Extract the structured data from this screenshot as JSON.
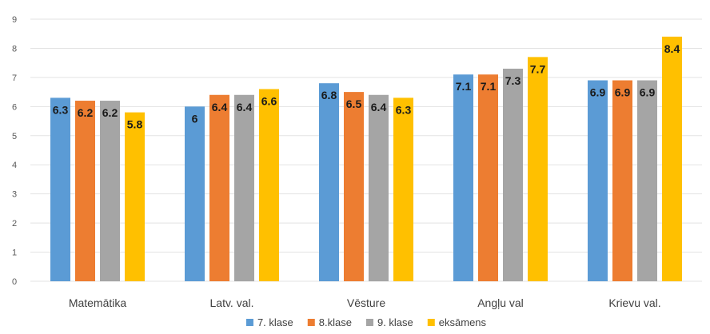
{
  "chart_data": {
    "type": "bar",
    "title": "",
    "xlabel": "",
    "ylabel": "",
    "ylim": [
      0,
      9
    ],
    "yticks": [
      0,
      1,
      2,
      3,
      4,
      5,
      6,
      7,
      8,
      9
    ],
    "grid": true,
    "legend_position": "bottom",
    "categories": [
      "Matemātika",
      "Latv. val.",
      "Vēsture",
      "Angļu val",
      "Krievu val."
    ],
    "series": [
      {
        "name": "7. klase",
        "color": "#5b9bd5",
        "values": [
          6.3,
          6,
          6.8,
          7.1,
          6.9
        ],
        "labels": [
          "6.3",
          "6",
          "6.8",
          "7.1",
          "6.9"
        ]
      },
      {
        "name": "8.klase",
        "color": "#ed7d31",
        "values": [
          6.2,
          6.4,
          6.5,
          7.1,
          6.9
        ],
        "labels": [
          "6.2",
          "6.4",
          "6.5",
          "7.1",
          "6.9"
        ]
      },
      {
        "name": "9. klase",
        "color": "#a5a5a5",
        "values": [
          6.2,
          6.4,
          6.4,
          7.3,
          6.9
        ],
        "labels": [
          "6.2",
          "6.4",
          "6.4",
          "7.3",
          "6.9"
        ]
      },
      {
        "name": "eksāmens",
        "color": "#ffc000",
        "values": [
          5.8,
          6.6,
          6.3,
          7.7,
          8.4
        ],
        "labels": [
          "5.8",
          "6.6",
          "6.3",
          "7.7",
          "8.4"
        ]
      }
    ]
  }
}
